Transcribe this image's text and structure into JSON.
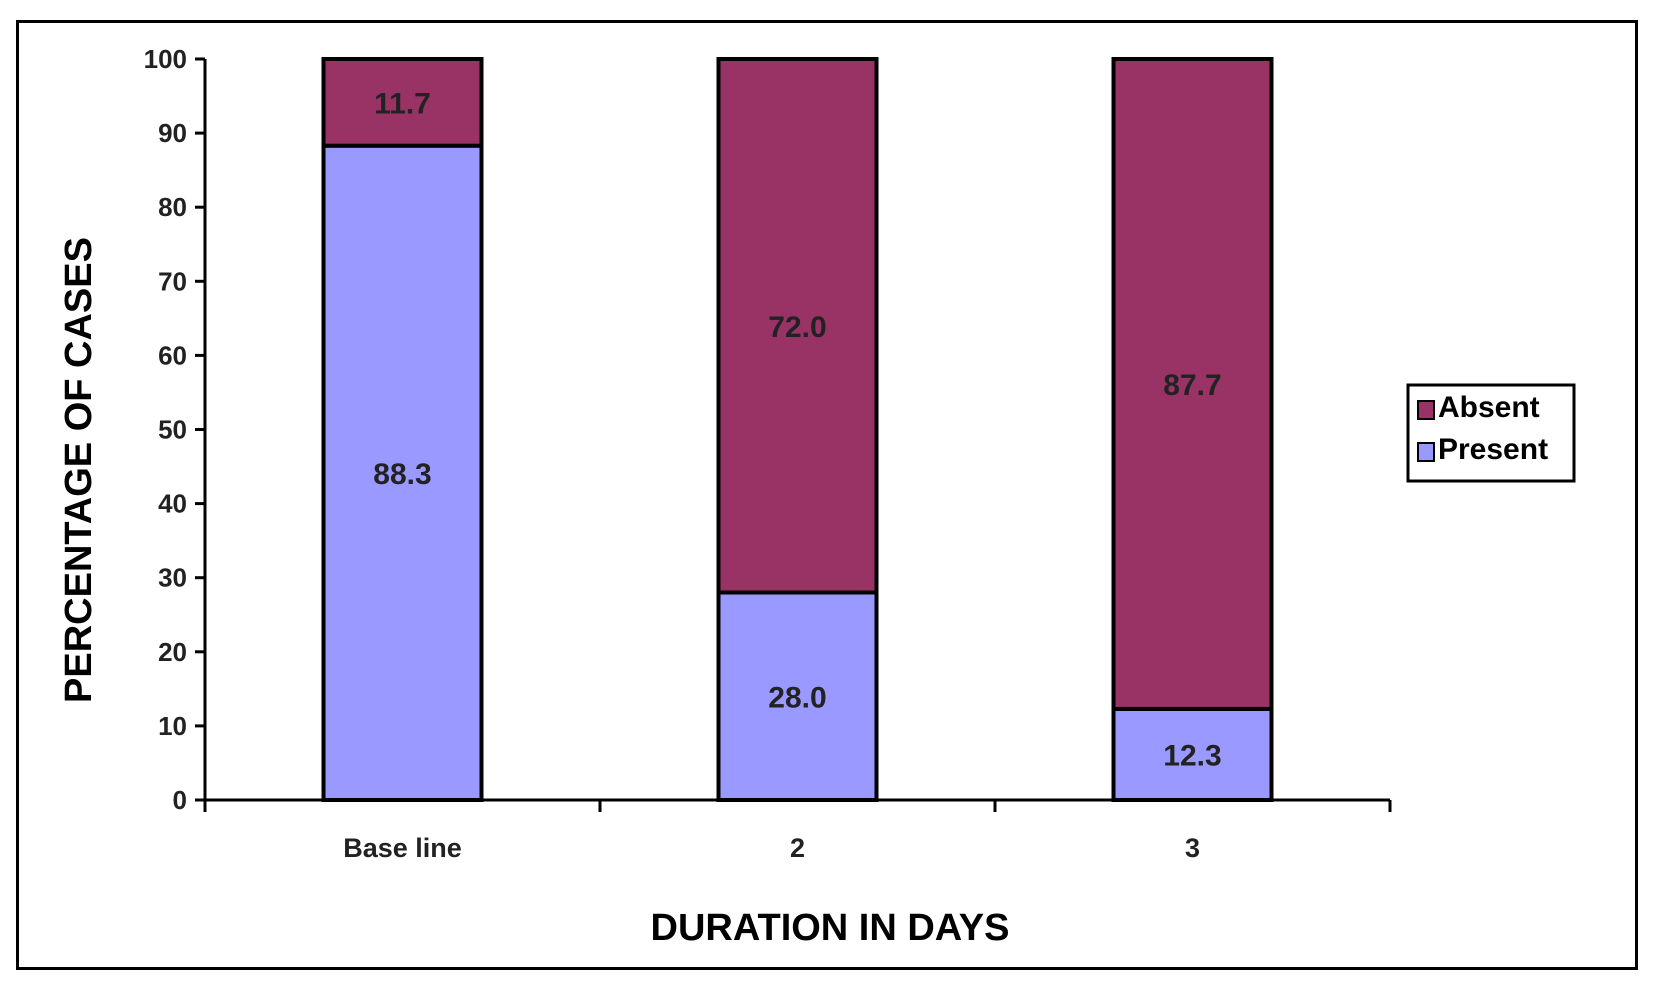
{
  "chart_data": {
    "type": "bar",
    "stacked": true,
    "categories": [
      "Base line",
      "2",
      "3"
    ],
    "series": [
      {
        "name": "Present",
        "values": [
          88.3,
          28.0,
          12.3
        ],
        "labels": [
          "88.3",
          "28.0",
          "12.3"
        ],
        "color": "#9999ff"
      },
      {
        "name": "Absent",
        "values": [
          11.7,
          72.0,
          87.7
        ],
        "labels": [
          "11.7",
          "72.0",
          "87.7"
        ],
        "color": "#993366"
      }
    ],
    "xlabel": "DURATION IN DAYS",
    "ylabel": "PERCENTAGE OF CASES",
    "ylim": [
      0,
      100
    ],
    "yticks": [
      0,
      10,
      20,
      30,
      40,
      50,
      60,
      70,
      80,
      90,
      100
    ],
    "grid": false,
    "legend_position": "right",
    "legend_order": [
      "Absent",
      "Present"
    ]
  }
}
